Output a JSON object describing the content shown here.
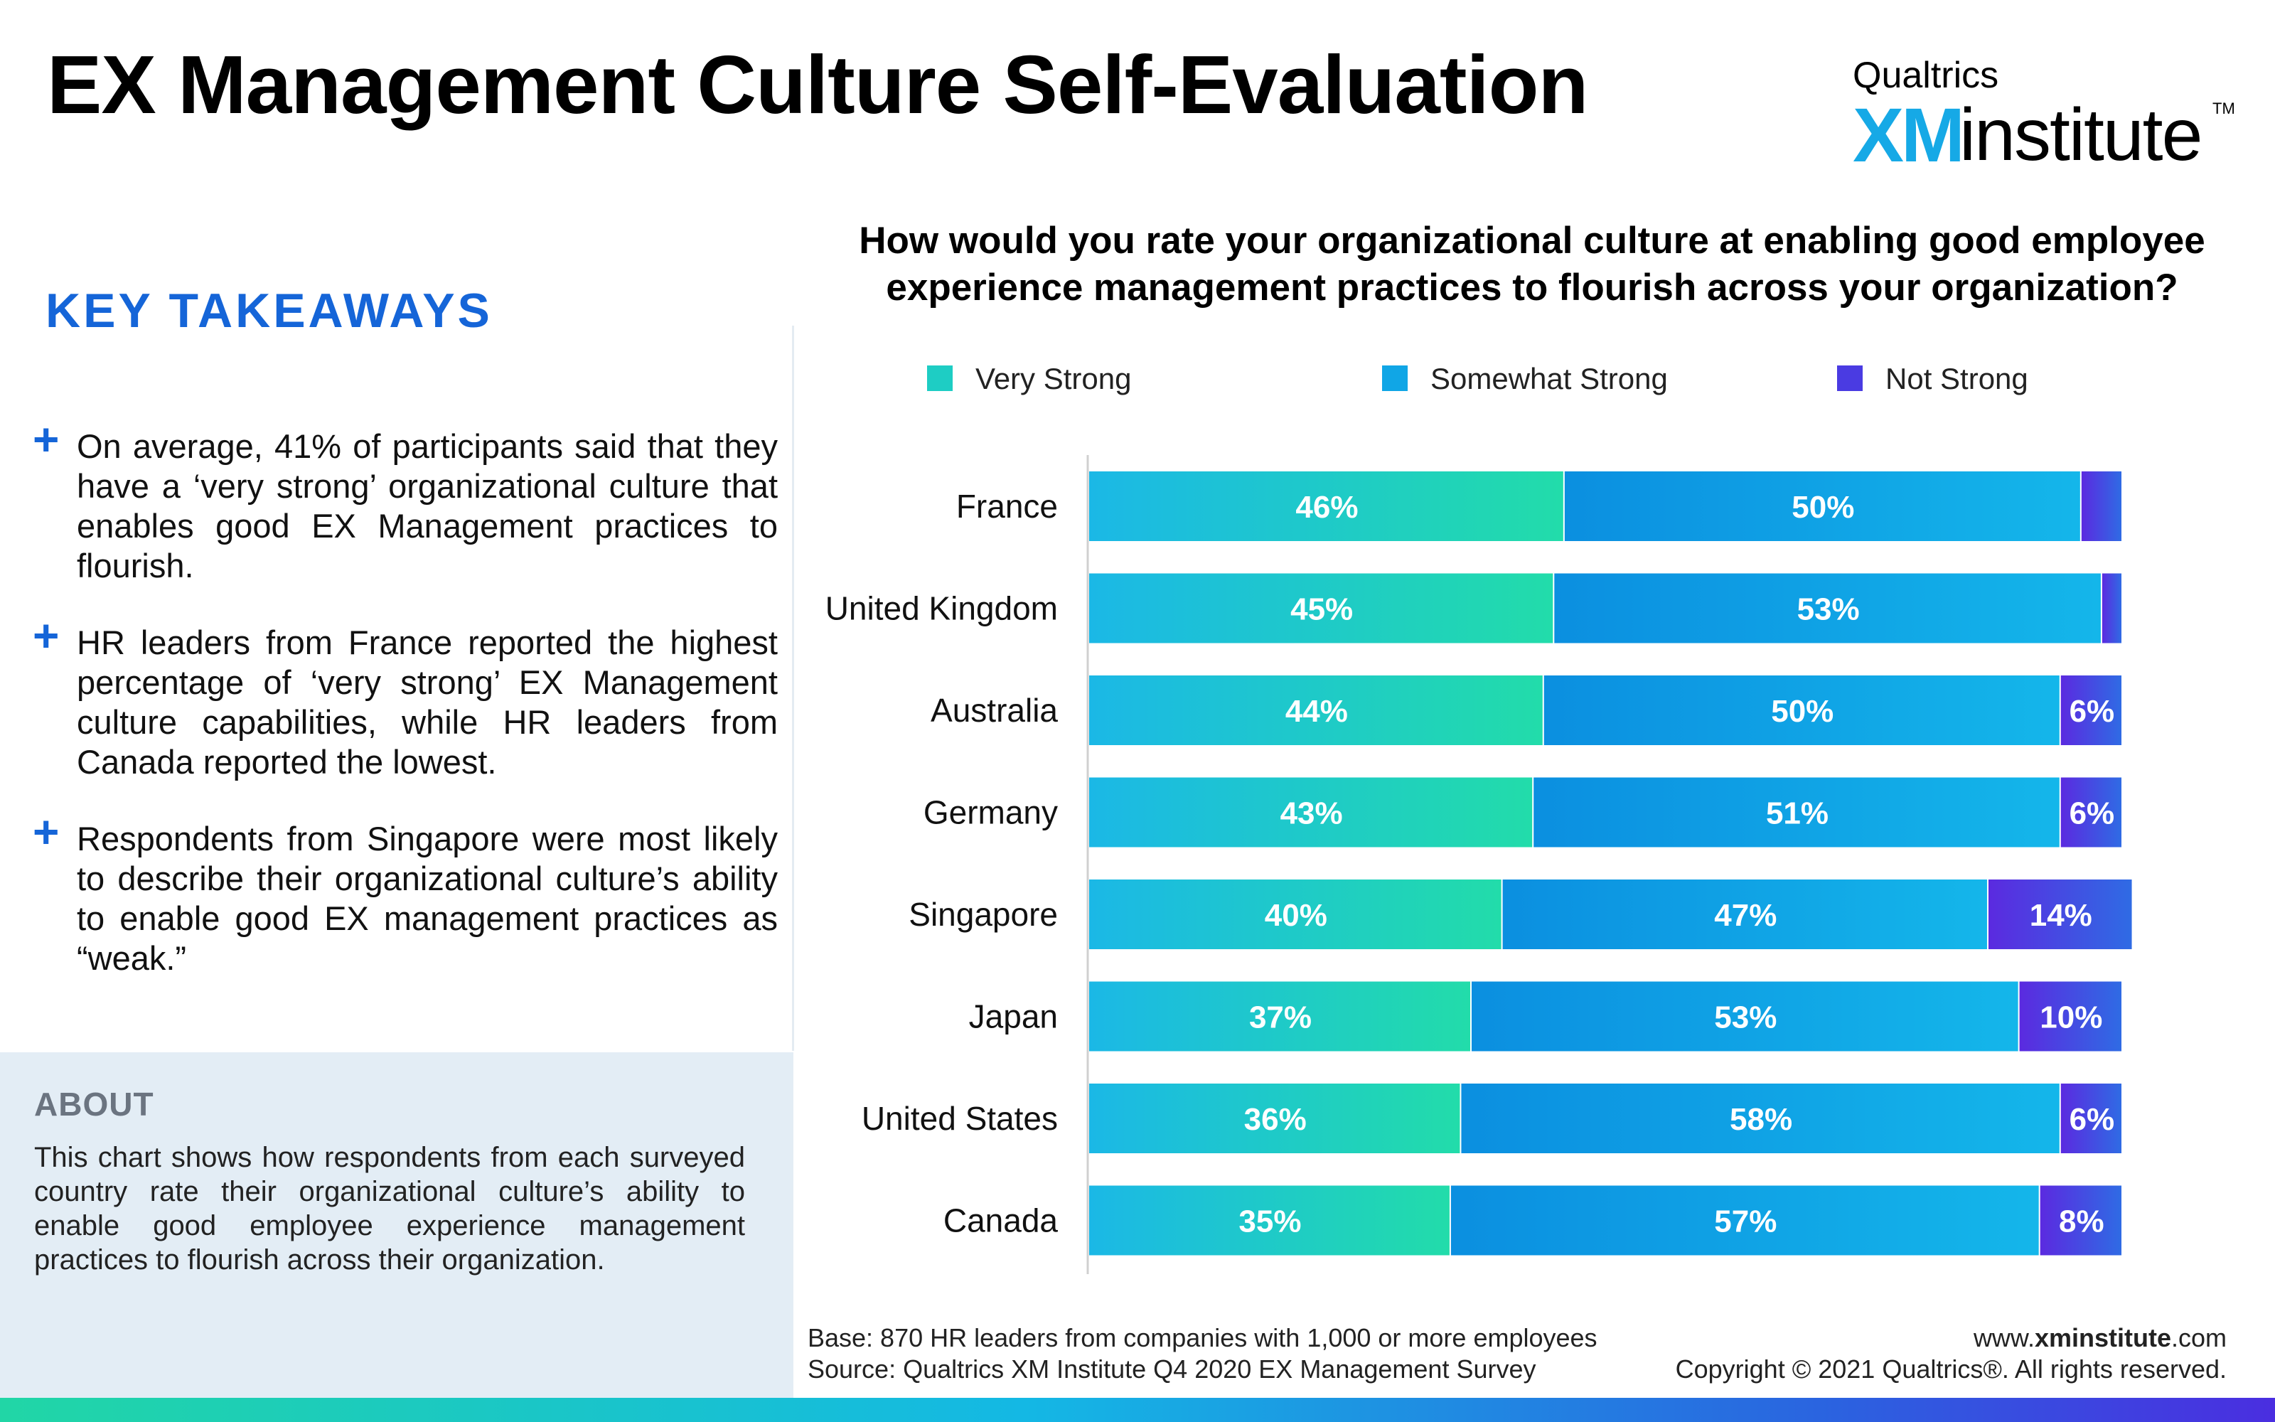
{
  "title": "EX Management Culture Self-Evaluation",
  "logo": {
    "brand": "Qualtrics",
    "xm": "XM",
    "institute": "institute",
    "tm": "TM"
  },
  "takeaways": {
    "heading": "KEY TAKEAWAYS",
    "items": [
      {
        "text": "On average, 41% of participants said that they have a ‘very strong’ organizational culture that enables good EX Management practices to flourish."
      },
      {
        "text": "HR leaders from France reported the highest percentage of ‘very strong’ EX Management culture capabilities, while HR leaders from Canada reported the lowest."
      },
      {
        "text": "Respondents from Singapore were most likely to describe their organizational culture’s ability to enable good EX management practices as “weak.”"
      }
    ]
  },
  "about": {
    "heading": "ABOUT",
    "text": "This chart shows how respondents from each surveyed country rate their organizational culture’s ability to enable good employee experience management practices to flourish across their organization."
  },
  "question": "How would you rate your organizational culture at enabling good employee experience management practices to flourish across your organization?",
  "footer": {
    "base": "Base: 870 HR leaders from companies with 1,000 or more employees",
    "source": "Source: Qualtrics XM Institute Q4 2020  EX Management Survey",
    "url_prefix": "www.",
    "url_bold": "xminstitute",
    "url_suffix": ".com",
    "copyright": "Copyright © 2021 Qualtrics®. All rights reserved."
  },
  "colors": {
    "very_strong": [
      "#1bb8e6",
      "#22dcaa"
    ],
    "somewhat_strong": [
      "#0b8fe0",
      "#14b6ea"
    ],
    "not_strong": [
      "#5b2ae0",
      "#2f6be4"
    ],
    "accent": "#1565d8"
  },
  "chart_data": {
    "type": "bar",
    "orientation": "horizontal",
    "stacked": true,
    "categories": [
      "France",
      "United Kingdom",
      "Australia",
      "Germany",
      "Singapore",
      "Japan",
      "United States",
      "Canada"
    ],
    "series": [
      {
        "name": "Very Strong",
        "values": [
          46,
          45,
          44,
          43,
          40,
          37,
          36,
          35
        ],
        "labels": [
          "46%",
          "45%",
          "44%",
          "43%",
          "40%",
          "37%",
          "36%",
          "35%"
        ]
      },
      {
        "name": "Somewhat Strong",
        "values": [
          50,
          53,
          50,
          51,
          47,
          53,
          58,
          57
        ],
        "labels": [
          "50%",
          "53%",
          "50%",
          "51%",
          "47%",
          "53%",
          "58%",
          "57%"
        ]
      },
      {
        "name": "Not Strong",
        "values": [
          4,
          2,
          6,
          6,
          14,
          10,
          6,
          8
        ],
        "labels": [
          "",
          "",
          "6%",
          "6%",
          "14%",
          "10%",
          "6%",
          "8%"
        ]
      }
    ],
    "xlim": [
      0,
      100
    ],
    "legend_position": "top",
    "grid": false
  }
}
